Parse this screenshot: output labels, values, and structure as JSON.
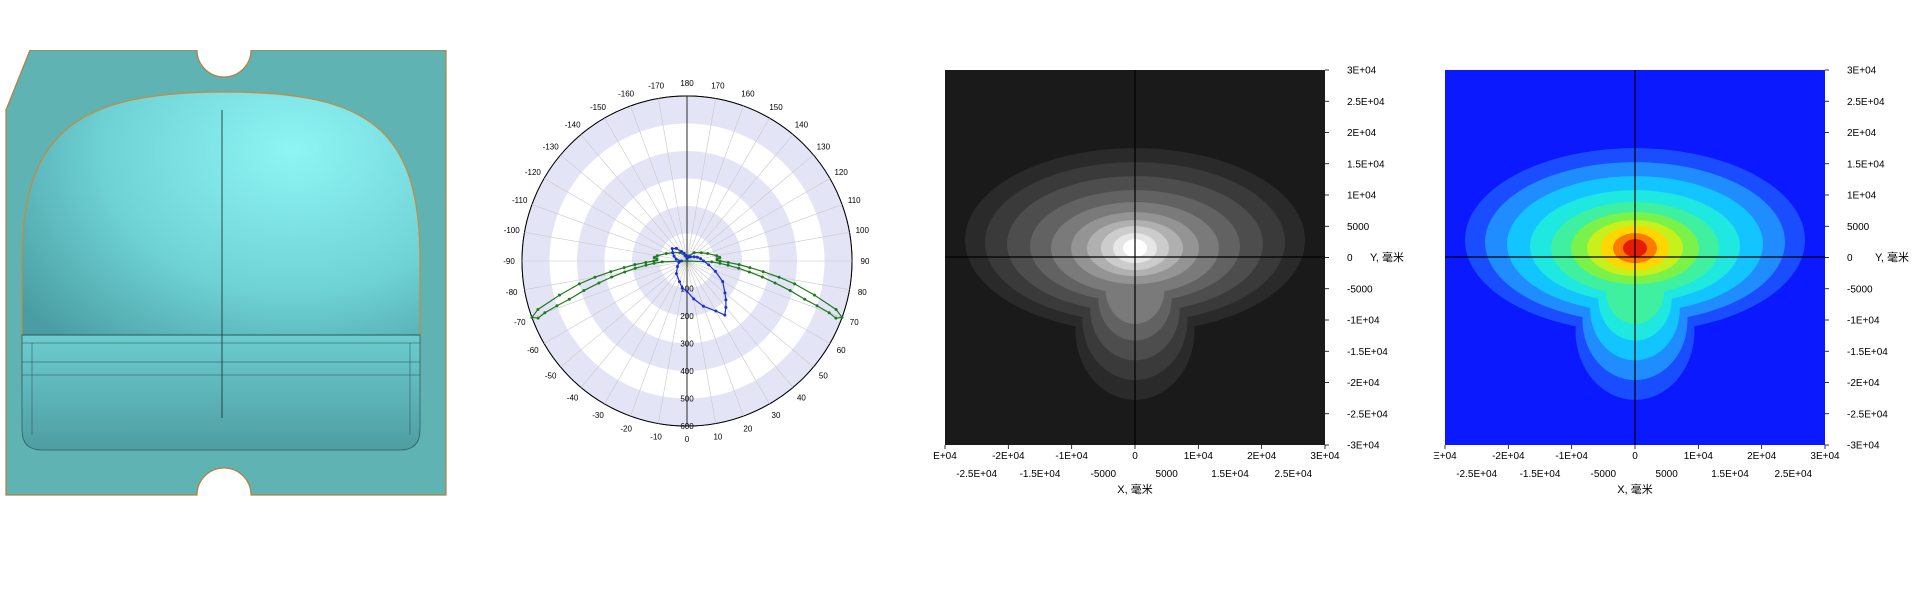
{
  "colors": {
    "lens_plate": "#5fb3b3",
    "lens_dome": "#6fd6d8",
    "lens_edge": "#c98a3a",
    "polar_band": "#e4e4f7",
    "series_green": "#1f7a1f",
    "series_blue": "#1a2fd6",
    "grey_map_bg": "#1a1a1a",
    "color_map_bg": "#0a19ff"
  },
  "chart_data": [
    {
      "type": "polar",
      "angle_ticks": [
        "180",
        "170",
        "160",
        "150",
        "140",
        "130",
        "120",
        "110",
        "100",
        "90",
        "80",
        "70",
        "60",
        "50",
        "40",
        "30",
        "20",
        "10",
        "0",
        "-10",
        "-20",
        "-30",
        "-40",
        "-50",
        "-60",
        "-70",
        "-80",
        "-90",
        "-100",
        "-110",
        "-120",
        "-130",
        "-140",
        "-150",
        "-160",
        "-170"
      ],
      "radial_ticks": [
        "100",
        "200",
        "300",
        "400",
        "500",
        "600"
      ],
      "rmax": 600,
      "series": [
        {
          "color": "#1f7a1f",
          "points": [
            [
              -90,
              0
            ],
            [
              -88,
              90
            ],
            [
              -86,
              120
            ],
            [
              -84,
              150
            ],
            [
              -82,
              190
            ],
            [
              -80,
              230
            ],
            [
              -78,
              280
            ],
            [
              -76,
              330
            ],
            [
              -74,
              390
            ],
            [
              -72,
              450
            ],
            [
              -71,
              500
            ],
            [
              -70,
              550
            ],
            [
              -69,
              580
            ],
            [
              -70,
              600
            ],
            [
              -72,
              570
            ],
            [
              -75,
              480
            ],
            [
              -78,
              400
            ],
            [
              -80,
              340
            ],
            [
              -82,
              280
            ],
            [
              -84,
              230
            ],
            [
              -86,
              190
            ],
            [
              -88,
              150
            ],
            [
              -90,
              120
            ],
            [
              -92,
              110
            ],
            [
              -94,
              110
            ],
            [
              -96,
              120
            ],
            [
              -100,
              110
            ],
            [
              -110,
              80
            ],
            [
              -120,
              60
            ],
            [
              -140,
              40
            ],
            [
              -160,
              20
            ],
            [
              180,
              10
            ],
            [
              160,
              20
            ],
            [
              140,
              40
            ],
            [
              120,
              60
            ],
            [
              110,
              80
            ],
            [
              100,
              110
            ],
            [
              96,
              120
            ],
            [
              94,
              110
            ],
            [
              92,
              110
            ],
            [
              90,
              120
            ],
            [
              88,
              150
            ],
            [
              86,
              190
            ],
            [
              84,
              230
            ],
            [
              82,
              280
            ],
            [
              80,
              340
            ],
            [
              78,
              400
            ],
            [
              75,
              480
            ],
            [
              72,
              570
            ],
            [
              70,
              600
            ],
            [
              69,
              580
            ],
            [
              70,
              550
            ],
            [
              71,
              500
            ],
            [
              72,
              450
            ],
            [
              74,
              390
            ],
            [
              76,
              330
            ],
            [
              78,
              280
            ],
            [
              80,
              230
            ],
            [
              82,
              190
            ],
            [
              84,
              150
            ],
            [
              86,
              120
            ],
            [
              88,
              90
            ],
            [
              90,
              0
            ]
          ]
        },
        {
          "color": "#1a2fd6",
          "points": [
            [
              -170,
              20
            ],
            [
              -160,
              30
            ],
            [
              -150,
              40
            ],
            [
              -140,
              60
            ],
            [
              -130,
              70
            ],
            [
              -120,
              60
            ],
            [
              -110,
              50
            ],
            [
              -100,
              40
            ],
            [
              -90,
              20
            ],
            [
              -80,
              30
            ],
            [
              -60,
              40
            ],
            [
              -40,
              60
            ],
            [
              -20,
              80
            ],
            [
              -10,
              100
            ],
            [
              0,
              110
            ],
            [
              10,
              140
            ],
            [
              20,
              175
            ],
            [
              30,
              210
            ],
            [
              35,
              240
            ],
            [
              40,
              220
            ],
            [
              45,
              200
            ],
            [
              50,
              180
            ],
            [
              60,
              150
            ],
            [
              70,
              110
            ],
            [
              80,
              80
            ],
            [
              90,
              60
            ],
            [
              100,
              50
            ],
            [
              110,
              40
            ],
            [
              120,
              30
            ],
            [
              140,
              20
            ],
            [
              160,
              15
            ],
            [
              180,
              10
            ],
            [
              -170,
              20
            ]
          ]
        }
      ]
    },
    {
      "type": "heatmap",
      "colormap": "grey",
      "xlabel": "X, 毫米",
      "ylabel": "Y, 毫米",
      "xlim": [
        -30000,
        30000
      ],
      "ylim": [
        -30000,
        30000
      ],
      "x_ticks_top_row": [
        "E+04",
        "-2E+04",
        "-1E+04",
        "0",
        "1E+04",
        "2E+04",
        "3E+04"
      ],
      "x_ticks_bottom_row": [
        "-2.5E+04",
        "-1.5E+04",
        "-5000",
        "5000",
        "1.5E+04",
        "2.5E+04"
      ],
      "y_ticks": [
        "3E+04",
        "2.5E+04",
        "2E+04",
        "1.5E+04",
        "1E+04",
        "5000",
        "0",
        "-5000",
        "-1E+04",
        "-1.5E+04",
        "-2E+04",
        "-2.5E+04",
        "-3E+04"
      ]
    },
    {
      "type": "heatmap",
      "colormap": "jet",
      "xlabel": "X, 毫米",
      "ylabel": "Y, 毫米",
      "xlim": [
        -30000,
        30000
      ],
      "ylim": [
        -30000,
        30000
      ],
      "x_ticks_top_row": [
        "Ξ+04",
        "-2E+04",
        "-1E+04",
        "0",
        "1E+04",
        "2E+04",
        "3E+04"
      ],
      "x_ticks_bottom_row": [
        "-2.5E+04",
        "-1.5E+04",
        "-5000",
        "5000",
        "1.5E+04",
        "2.5E+04"
      ],
      "y_ticks": [
        "3E+04",
        "2.5E+04",
        "2E+04",
        "1.5E+04",
        "1E+04",
        "5000",
        "0",
        "-5000",
        "-1E+04",
        "-1.5E+04",
        "-2E+04",
        "-2.5E+04",
        "-3E+04"
      ]
    }
  ]
}
